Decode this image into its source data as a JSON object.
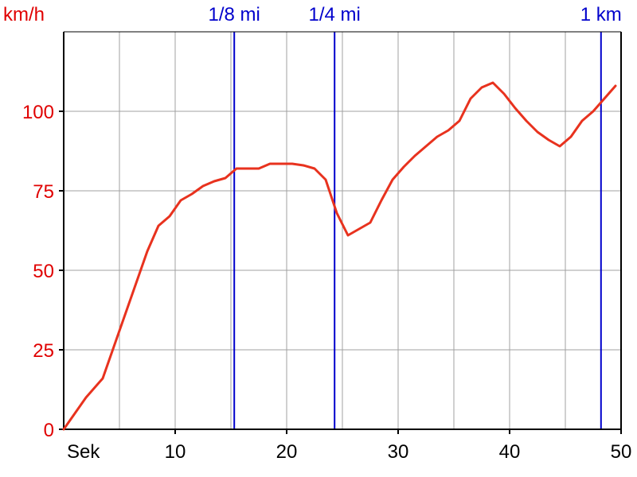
{
  "chart_data": {
    "type": "line",
    "ylabel": "km/h",
    "xlabel": "Sek",
    "xlim": [
      0,
      50
    ],
    "ylim": [
      0,
      125
    ],
    "x_ticks": [
      10,
      20,
      30,
      40,
      50
    ],
    "y_ticks": [
      0,
      25,
      50,
      75,
      100
    ],
    "grid": true,
    "colors": {
      "line": "#e8321e",
      "markers": "#0000cc",
      "grid": "#a0a0a0",
      "axis": "#000000",
      "y_ticks": "#e00000"
    },
    "markers": [
      {
        "label": "1/8 mi",
        "x": 15.3
      },
      {
        "label": "1/4 mi",
        "x": 24.3
      },
      {
        "label": "1 km",
        "x": 48.2
      }
    ],
    "series": [
      {
        "x": [
          0,
          1,
          2,
          3.5,
          4.5,
          6,
          7.5,
          8.5,
          9.5,
          10.5,
          11.5,
          12.5,
          13.5,
          14.5,
          15.5,
          16.5,
          17.5,
          18.5,
          19.5,
          20.5,
          21.5,
          22.5,
          23.5,
          24.5,
          25.5,
          26.5,
          27.5,
          28.5,
          29.5,
          30.5,
          31.5,
          32.5,
          33.5,
          34.5,
          35.5,
          36.5,
          37.5,
          38.5,
          39.5,
          40.5,
          41.5,
          42.5,
          43.5,
          44.5,
          45.5,
          46.5,
          47.5,
          48.5,
          49.5
        ],
        "values": [
          0,
          5,
          10,
          16,
          26,
          41,
          56,
          64,
          67,
          72,
          74,
          76.5,
          78,
          79,
          82,
          82,
          82,
          83.5,
          83.5,
          83.5,
          83,
          82,
          78.5,
          68,
          61,
          63,
          65,
          72,
          78.5,
          82.5,
          86,
          89,
          92,
          94,
          97,
          104,
          107.5,
          109,
          105.5,
          101,
          97,
          93.5,
          91,
          89,
          92,
          97,
          100,
          104,
          108
        ]
      }
    ]
  }
}
